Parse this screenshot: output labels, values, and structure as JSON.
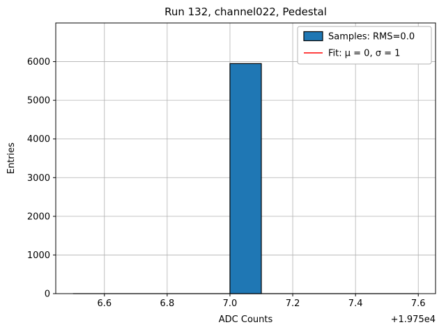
{
  "chart_data": {
    "type": "bar",
    "title": "Run 132, channel022, Pedestal",
    "xlabel": "ADC Counts",
    "ylabel": "Entries",
    "x_offset_label": "+1.975e4",
    "xlim": [
      6.445,
      7.655
    ],
    "ylim": [
      0,
      7000
    ],
    "xticks": [
      6.6,
      6.8,
      7.0,
      7.2,
      7.4,
      7.6
    ],
    "xtick_labels": [
      "6.6",
      "6.8",
      "7.0",
      "7.2",
      "7.4",
      "7.6"
    ],
    "yticks": [
      0,
      1000,
      2000,
      3000,
      4000,
      5000,
      6000
    ],
    "ytick_labels": [
      "0",
      "1000",
      "2000",
      "3000",
      "4000",
      "5000",
      "6000"
    ],
    "grid": true,
    "baseline_range": [
      6.5,
      7.6
    ],
    "bars": [
      {
        "x0": 7.0,
        "x1": 7.1,
        "value": 5950
      }
    ],
    "colors": {
      "bar_fill": "#1f77b4",
      "bar_edge": "#000000",
      "grid": "#b0b0b0",
      "axis": "#000000",
      "fit_line": "#ff0000",
      "legend_border": "#b3b3b3",
      "background": "#ffffff"
    },
    "legend": {
      "position": "upper-right",
      "entries": [
        {
          "type": "patch",
          "color": "#1f77b4",
          "label": "Samples: RMS=0.0"
        },
        {
          "type": "line",
          "color": "#ff0000",
          "label": "Fit: μ = 0, σ = 1"
        }
      ]
    }
  }
}
